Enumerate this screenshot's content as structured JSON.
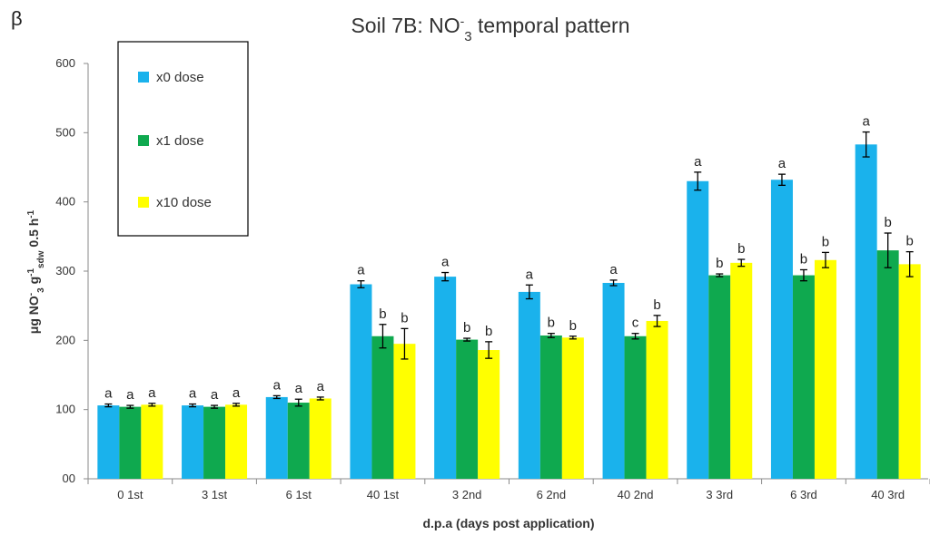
{
  "panel_label": "β",
  "chart_data": {
    "type": "bar",
    "title": "Soil 7B: NO-3 temporal pattern",
    "xlabel": "d.p.a (days post application)",
    "ylabel": "μg NO-3 g-1sdw 0.5 h-1",
    "ylim": [
      0,
      600
    ],
    "yticks": [
      0,
      100,
      200,
      300,
      400,
      500,
      600
    ],
    "ytick_labels": [
      "00",
      "100",
      "200",
      "300",
      "400",
      "500",
      "600"
    ],
    "categories": [
      "0 1st",
      "3 1st",
      "6 1st",
      "40 1st",
      "3 2nd",
      "6 2nd",
      "40 2nd",
      "3 3rd",
      "6 3rd",
      "40 3rd"
    ],
    "legend": {
      "position": "top-left",
      "boxed": true
    },
    "series": [
      {
        "name": "x0 dose",
        "color": "#1ab2ec",
        "values": [
          106,
          106,
          118,
          281,
          292,
          270,
          283,
          430,
          432,
          483
        ],
        "errors": [
          2,
          2,
          2,
          5,
          6,
          10,
          4,
          13,
          8,
          18
        ],
        "labels": [
          "a",
          "a",
          "a",
          "a",
          "a",
          "a",
          "a",
          "a",
          "a",
          "a"
        ]
      },
      {
        "name": "x1 dose",
        "color": "#0fa94f",
        "values": [
          104,
          104,
          110,
          206,
          201,
          207,
          206,
          294,
          294,
          330
        ],
        "errors": [
          2,
          2,
          5,
          17,
          2,
          3,
          4,
          2,
          8,
          25
        ],
        "labels": [
          "a",
          "a",
          "a",
          "b",
          "b",
          "b",
          "c",
          "b",
          "b",
          "b"
        ]
      },
      {
        "name": "x10 dose",
        "color": "#ffff00",
        "values": [
          107,
          107,
          116,
          195,
          186,
          204,
          228,
          312,
          316,
          310
        ],
        "errors": [
          2,
          2,
          2,
          22,
          12,
          2,
          8,
          5,
          11,
          18
        ],
        "labels": [
          "a",
          "a",
          "a",
          "b",
          "b",
          "b",
          "b",
          "b",
          "b",
          "b"
        ]
      }
    ]
  }
}
